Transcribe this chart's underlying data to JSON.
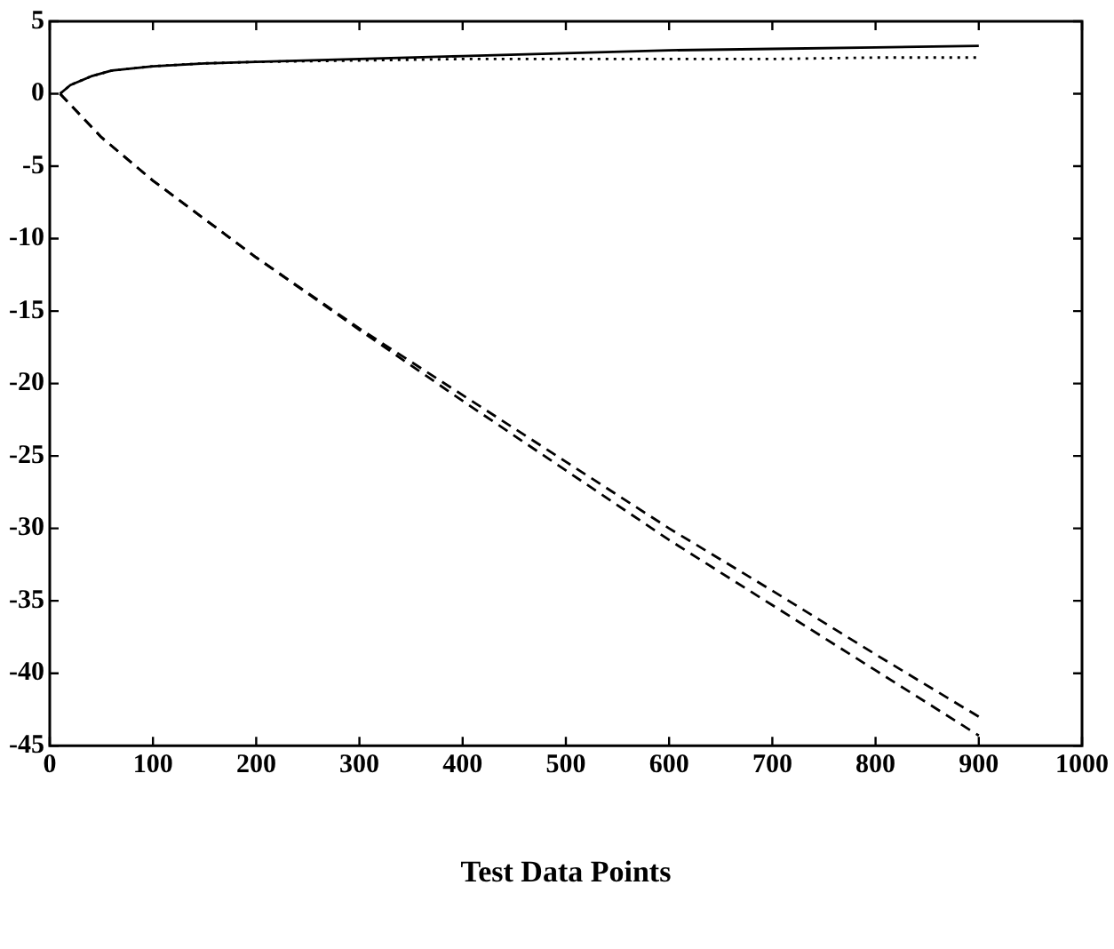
{
  "chart_data": {
    "type": "line",
    "xlabel": "Test Data Points",
    "xlim": [
      0,
      1000
    ],
    "xticks": [
      0,
      100,
      200,
      300,
      400,
      500,
      600,
      700,
      800,
      900,
      1000
    ],
    "ylim": [
      -45,
      5
    ],
    "yticks": [
      5,
      0,
      -5,
      -10,
      -15,
      -20,
      -25,
      -30,
      -35,
      -40,
      -45
    ],
    "grid": false,
    "legend": false,
    "marker": "none",
    "series": [
      {
        "color": "#000000",
        "line_style": "solid",
        "x": [
          10,
          20,
          40,
          60,
          100,
          150,
          200,
          300,
          400,
          500,
          600,
          700,
          800,
          900
        ],
        "values": [
          0,
          0.6,
          1.2,
          1.6,
          1.9,
          2.1,
          2.2,
          2.4,
          2.6,
          2.8,
          3,
          3.1,
          3.2,
          3.3
        ]
      },
      {
        "color": "#000000",
        "line_style": "dotted",
        "x": [
          10,
          20,
          40,
          60,
          100,
          150,
          200,
          300,
          400,
          500,
          600,
          700,
          800,
          900
        ],
        "values": [
          0,
          0.6,
          1.2,
          1.6,
          1.9,
          2.1,
          2.2,
          2.3,
          2.4,
          2.4,
          2.4,
          2.4,
          2.5,
          2.5
        ]
      },
      {
        "color": "#000000",
        "line_style": "dashed",
        "x": [
          10,
          50,
          100,
          200,
          300,
          400,
          500,
          600,
          700,
          800,
          900
        ],
        "values": [
          0,
          -3,
          -6,
          -11.3,
          -16.3,
          -21.2,
          -26,
          -30.8,
          -35.3,
          -39.8,
          -44.3
        ]
      },
      {
        "color": "#000000",
        "line_style": "dashed",
        "x": [
          10,
          50,
          100,
          200,
          300,
          400,
          500,
          600,
          700,
          800,
          900
        ],
        "values": [
          0,
          -3,
          -6,
          -11.3,
          -16.2,
          -20.8,
          -25.4,
          -30,
          -34.3,
          -38.7,
          -43
        ]
      }
    ]
  }
}
